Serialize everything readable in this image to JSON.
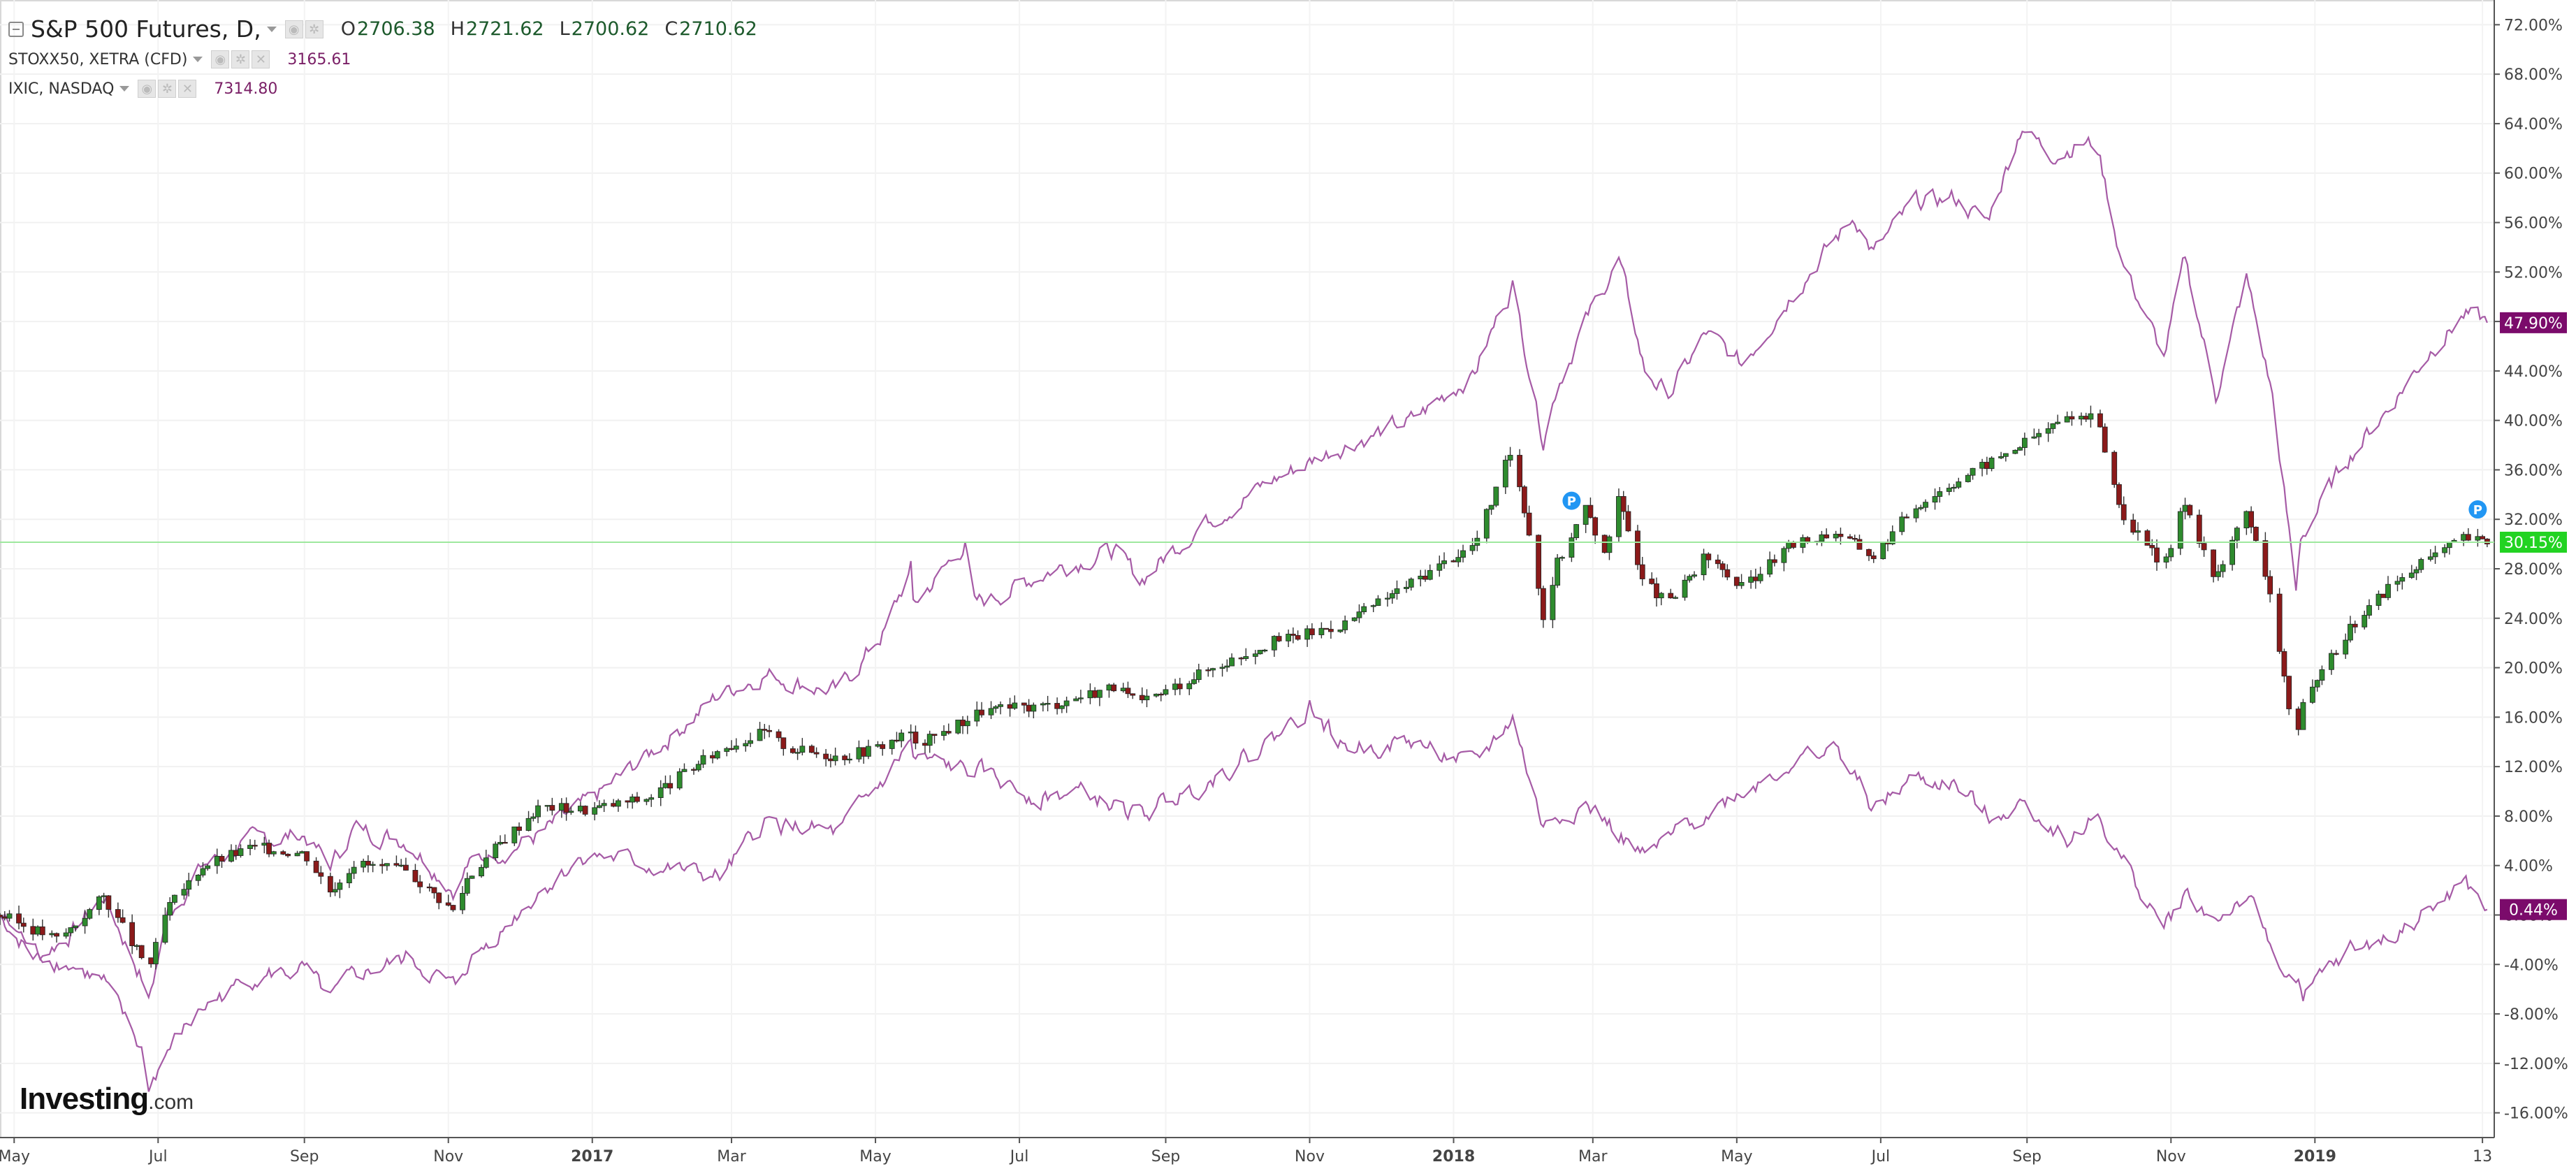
{
  "legend": {
    "main": {
      "symbol": "S&P 500 Futures, D,",
      "open_key": "O",
      "open": "2706.38",
      "high_key": "H",
      "high": "2721.62",
      "low_key": "L",
      "low": "2700.62",
      "close_key": "C",
      "close": "2710.62"
    },
    "compare": [
      {
        "symbol": "STOXX50, XETRA (CFD)",
        "value": "3165.61"
      },
      {
        "symbol": "IXIC, NASDAQ",
        "value": "7314.80"
      }
    ]
  },
  "brand": {
    "name": "Investing",
    "suffix": ".com"
  },
  "colors": {
    "up_candle": "#2e8b2e",
    "down_candle": "#8b1a1a",
    "compare_line": "#a65ba6",
    "main_badge": "#22d322",
    "compare_badge": "#7b0b6b",
    "price_line": "#9ee89e",
    "marker": "#2196f3"
  },
  "chart_data": {
    "type": "line",
    "title": "",
    "xlabel": "",
    "ylabel": "",
    "ylim": [
      -18,
      74
    ],
    "y_unit": "%",
    "yticks": [
      "72.00%",
      "68.00%",
      "64.00%",
      "60.00%",
      "56.00%",
      "52.00%",
      "48.00%",
      "44.00%",
      "40.00%",
      "36.00%",
      "32.00%",
      "28.00%",
      "24.00%",
      "20.00%",
      "16.00%",
      "12.00%",
      "8.00%",
      "4.00%",
      "0.00%",
      "-4.00%",
      "-8.00%",
      "-12.00%",
      "-16.00%"
    ],
    "xticks": [
      "May",
      "Jul",
      "Sep",
      "Nov",
      "2017",
      "Mar",
      "May",
      "Jul",
      "Sep",
      "Nov",
      "2018",
      "Mar",
      "May",
      "Jul",
      "Sep",
      "Nov",
      "2019",
      "13"
    ],
    "x_start": "2016-04-25",
    "x_end": "2019-03-18",
    "last_values": {
      "sp500": "30.15%",
      "ixic": "47.90%",
      "stoxx50": "0.44%"
    },
    "markers": [
      {
        "label": "P",
        "date": "2018-02-20",
        "value": 33.5
      },
      {
        "label": "P",
        "date": "2019-03-11",
        "value": 32.8
      }
    ],
    "series": [
      {
        "key": "sp500",
        "style": "candlestick",
        "values": [
          [
            "2016-04-25",
            0
          ],
          [
            "2016-05-10",
            -1.2
          ],
          [
            "2016-05-20",
            -2.0
          ],
          [
            "2016-06-08",
            1.5
          ],
          [
            "2016-06-24",
            -3.5
          ],
          [
            "2016-06-27",
            -4.5
          ],
          [
            "2016-07-05",
            0.5
          ],
          [
            "2016-07-20",
            4.0
          ],
          [
            "2016-08-10",
            5.5
          ],
          [
            "2016-09-01",
            5.0
          ],
          [
            "2016-09-12",
            2.0
          ],
          [
            "2016-09-22",
            4.2
          ],
          [
            "2016-10-15",
            3.5
          ],
          [
            "2016-11-04",
            0.2
          ],
          [
            "2016-11-09",
            3.0
          ],
          [
            "2016-11-25",
            6.2
          ],
          [
            "2016-12-10",
            8.8
          ],
          [
            "2016-12-30",
            8.5
          ],
          [
            "2017-01-25",
            9.5
          ],
          [
            "2017-02-25",
            13.5
          ],
          [
            "2017-03-15",
            14.8
          ],
          [
            "2017-03-25",
            13.5
          ],
          [
            "2017-04-15",
            12.8
          ],
          [
            "2017-05-01",
            13.5
          ],
          [
            "2017-05-16",
            14.8
          ],
          [
            "2017-05-17",
            13.5
          ],
          [
            "2017-06-15",
            16.5
          ],
          [
            "2017-07-15",
            17.0
          ],
          [
            "2017-08-10",
            18.5
          ],
          [
            "2017-08-21",
            17.0
          ],
          [
            "2017-09-15",
            19.5
          ],
          [
            "2017-10-15",
            22.0
          ],
          [
            "2017-11-15",
            23.5
          ],
          [
            "2017-12-15",
            27.0
          ],
          [
            "2018-01-10",
            30.0
          ],
          [
            "2018-01-26",
            37.8
          ],
          [
            "2018-02-05",
            28.0
          ],
          [
            "2018-02-08",
            24.0
          ],
          [
            "2018-02-14",
            28.5
          ],
          [
            "2018-02-26",
            33.0
          ],
          [
            "2018-03-05",
            29.0
          ],
          [
            "2018-03-12",
            33.5
          ],
          [
            "2018-03-23",
            27.0
          ],
          [
            "2018-04-02",
            25.0
          ],
          [
            "2018-04-18",
            29.0
          ],
          [
            "2018-05-03",
            26.5
          ],
          [
            "2018-05-25",
            30.0
          ],
          [
            "2018-06-12",
            31.0
          ],
          [
            "2018-06-28",
            29.0
          ],
          [
            "2018-07-15",
            33.0
          ],
          [
            "2018-08-01",
            35.0
          ],
          [
            "2018-08-20",
            37.0
          ],
          [
            "2018-09-20",
            40.5
          ],
          [
            "2018-10-01",
            40.0
          ],
          [
            "2018-10-11",
            32.5
          ],
          [
            "2018-10-29",
            28.0
          ],
          [
            "2018-11-07",
            33.5
          ],
          [
            "2018-11-20",
            27.0
          ],
          [
            "2018-12-03",
            33.0
          ],
          [
            "2018-12-14",
            25.0
          ],
          [
            "2018-12-24",
            13.5
          ],
          [
            "2018-12-26",
            16.5
          ],
          [
            "2019-01-15",
            23.0
          ],
          [
            "2019-02-01",
            26.5
          ],
          [
            "2019-02-20",
            29.0
          ],
          [
            "2019-03-05",
            30.5
          ],
          [
            "2019-03-15",
            30.15
          ]
        ]
      },
      {
        "key": "ixic",
        "style": "line",
        "values": [
          [
            "2016-04-25",
            0
          ],
          [
            "2016-05-10",
            -3.5
          ],
          [
            "2016-05-25",
            -1.5
          ],
          [
            "2016-06-08",
            1.5
          ],
          [
            "2016-06-24",
            -5.0
          ],
          [
            "2016-06-27",
            -7.0
          ],
          [
            "2016-07-05",
            0.0
          ],
          [
            "2016-07-20",
            4.0
          ],
          [
            "2016-08-10",
            6.0
          ],
          [
            "2016-09-01",
            6.5
          ],
          [
            "2016-09-12",
            4.0
          ],
          [
            "2016-09-22",
            7.0
          ],
          [
            "2016-10-15",
            6.0
          ],
          [
            "2016-11-04",
            2.0
          ],
          [
            "2016-11-09",
            4.0
          ],
          [
            "2016-12-10",
            6.5
          ],
          [
            "2016-12-30",
            9.0
          ],
          [
            "2017-01-25",
            13.0
          ],
          [
            "2017-02-25",
            18.0
          ],
          [
            "2017-03-15",
            19.5
          ],
          [
            "2017-04-15",
            18.0
          ],
          [
            "2017-05-05",
            23.0
          ],
          [
            "2017-05-16",
            28.0
          ],
          [
            "2017-05-17",
            25.0
          ],
          [
            "2017-06-08",
            30.0
          ],
          [
            "2017-06-12",
            25.0
          ],
          [
            "2017-07-15",
            28.0
          ],
          [
            "2017-08-10",
            29.5
          ],
          [
            "2017-08-21",
            27.0
          ],
          [
            "2017-09-15",
            31.5
          ],
          [
            "2017-10-15",
            35.0
          ],
          [
            "2017-11-15",
            38.0
          ],
          [
            "2017-12-15",
            40.0
          ],
          [
            "2018-01-10",
            44.0
          ],
          [
            "2018-01-26",
            51.0
          ],
          [
            "2018-02-08",
            38.5
          ],
          [
            "2018-02-14",
            43.0
          ],
          [
            "2018-02-26",
            48.0
          ],
          [
            "2018-03-12",
            53.0
          ],
          [
            "2018-03-23",
            44.0
          ],
          [
            "2018-04-02",
            42.0
          ],
          [
            "2018-04-18",
            47.0
          ],
          [
            "2018-05-03",
            44.5
          ],
          [
            "2018-05-25",
            50.5
          ],
          [
            "2018-06-20",
            56.5
          ],
          [
            "2018-06-28",
            53.5
          ],
          [
            "2018-07-15",
            57.5
          ],
          [
            "2018-08-01",
            58.0
          ],
          [
            "2018-08-15",
            56.0
          ],
          [
            "2018-08-30",
            64.0
          ],
          [
            "2018-09-10",
            61.5
          ],
          [
            "2018-09-25",
            62.5
          ],
          [
            "2018-10-01",
            62.0
          ],
          [
            "2018-10-11",
            53.0
          ],
          [
            "2018-10-29",
            45.0
          ],
          [
            "2018-11-07",
            53.0
          ],
          [
            "2018-11-20",
            42.0
          ],
          [
            "2018-12-03",
            51.5
          ],
          [
            "2018-12-14",
            42.0
          ],
          [
            "2018-12-24",
            26.0
          ],
          [
            "2018-12-26",
            30.5
          ],
          [
            "2019-01-15",
            37.0
          ],
          [
            "2019-02-01",
            41.0
          ],
          [
            "2019-02-20",
            46.0
          ],
          [
            "2019-03-05",
            48.5
          ],
          [
            "2019-03-15",
            47.9
          ]
        ]
      },
      {
        "key": "stoxx50",
        "style": "line",
        "values": [
          [
            "2016-04-25",
            0
          ],
          [
            "2016-05-10",
            -3.0
          ],
          [
            "2016-05-25",
            -4.0
          ],
          [
            "2016-06-08",
            -5.5
          ],
          [
            "2016-06-24",
            -11.0
          ],
          [
            "2016-06-27",
            -14.0
          ],
          [
            "2016-07-05",
            -11.0
          ],
          [
            "2016-07-20",
            -7.5
          ],
          [
            "2016-08-10",
            -5.0
          ],
          [
            "2016-09-01",
            -4.5
          ],
          [
            "2016-09-12",
            -7.0
          ],
          [
            "2016-09-22",
            -5.0
          ],
          [
            "2016-10-15",
            -3.5
          ],
          [
            "2016-11-04",
            -6.0
          ],
          [
            "2016-11-09",
            -4.0
          ],
          [
            "2016-12-10",
            2.0
          ],
          [
            "2016-12-30",
            5.0
          ],
          [
            "2017-01-25",
            4.0
          ],
          [
            "2017-02-25",
            3.0
          ],
          [
            "2017-03-15",
            7.5
          ],
          [
            "2017-04-15",
            6.5
          ],
          [
            "2017-05-05",
            11.0
          ],
          [
            "2017-05-16",
            14.0
          ],
          [
            "2017-05-17",
            12.5
          ],
          [
            "2017-06-15",
            11.5
          ],
          [
            "2017-07-10",
            9.5
          ],
          [
            "2017-07-25",
            10.0
          ],
          [
            "2017-08-21",
            8.0
          ],
          [
            "2017-09-15",
            10.5
          ],
          [
            "2017-10-15",
            14.0
          ],
          [
            "2017-11-01",
            17.0
          ],
          [
            "2017-11-15",
            13.5
          ],
          [
            "2017-12-15",
            14.0
          ],
          [
            "2018-01-10",
            12.0
          ],
          [
            "2018-01-26",
            16.0
          ],
          [
            "2018-02-08",
            7.0
          ],
          [
            "2018-02-14",
            8.0
          ],
          [
            "2018-02-26",
            9.0
          ],
          [
            "2018-03-23",
            4.5
          ],
          [
            "2018-04-15",
            8.0
          ],
          [
            "2018-05-03",
            10.0
          ],
          [
            "2018-05-25",
            12.5
          ],
          [
            "2018-06-12",
            13.5
          ],
          [
            "2018-06-28",
            8.5
          ],
          [
            "2018-07-15",
            11.0
          ],
          [
            "2018-08-01",
            10.5
          ],
          [
            "2018-08-15",
            8.0
          ],
          [
            "2018-08-30",
            9.0
          ],
          [
            "2018-09-20",
            6.0
          ],
          [
            "2018-10-01",
            8.0
          ],
          [
            "2018-10-11",
            4.5
          ],
          [
            "2018-10-29",
            -1.0
          ],
          [
            "2018-11-07",
            1.5
          ],
          [
            "2018-11-20",
            -0.5
          ],
          [
            "2018-12-03",
            1.5
          ],
          [
            "2018-12-14",
            -3.0
          ],
          [
            "2018-12-27",
            -6.5
          ],
          [
            "2019-01-15",
            -3.0
          ],
          [
            "2019-02-01",
            -2.0
          ],
          [
            "2019-02-20",
            0.5
          ],
          [
            "2019-03-05",
            2.5
          ],
          [
            "2019-03-15",
            0.44
          ]
        ]
      }
    ]
  }
}
